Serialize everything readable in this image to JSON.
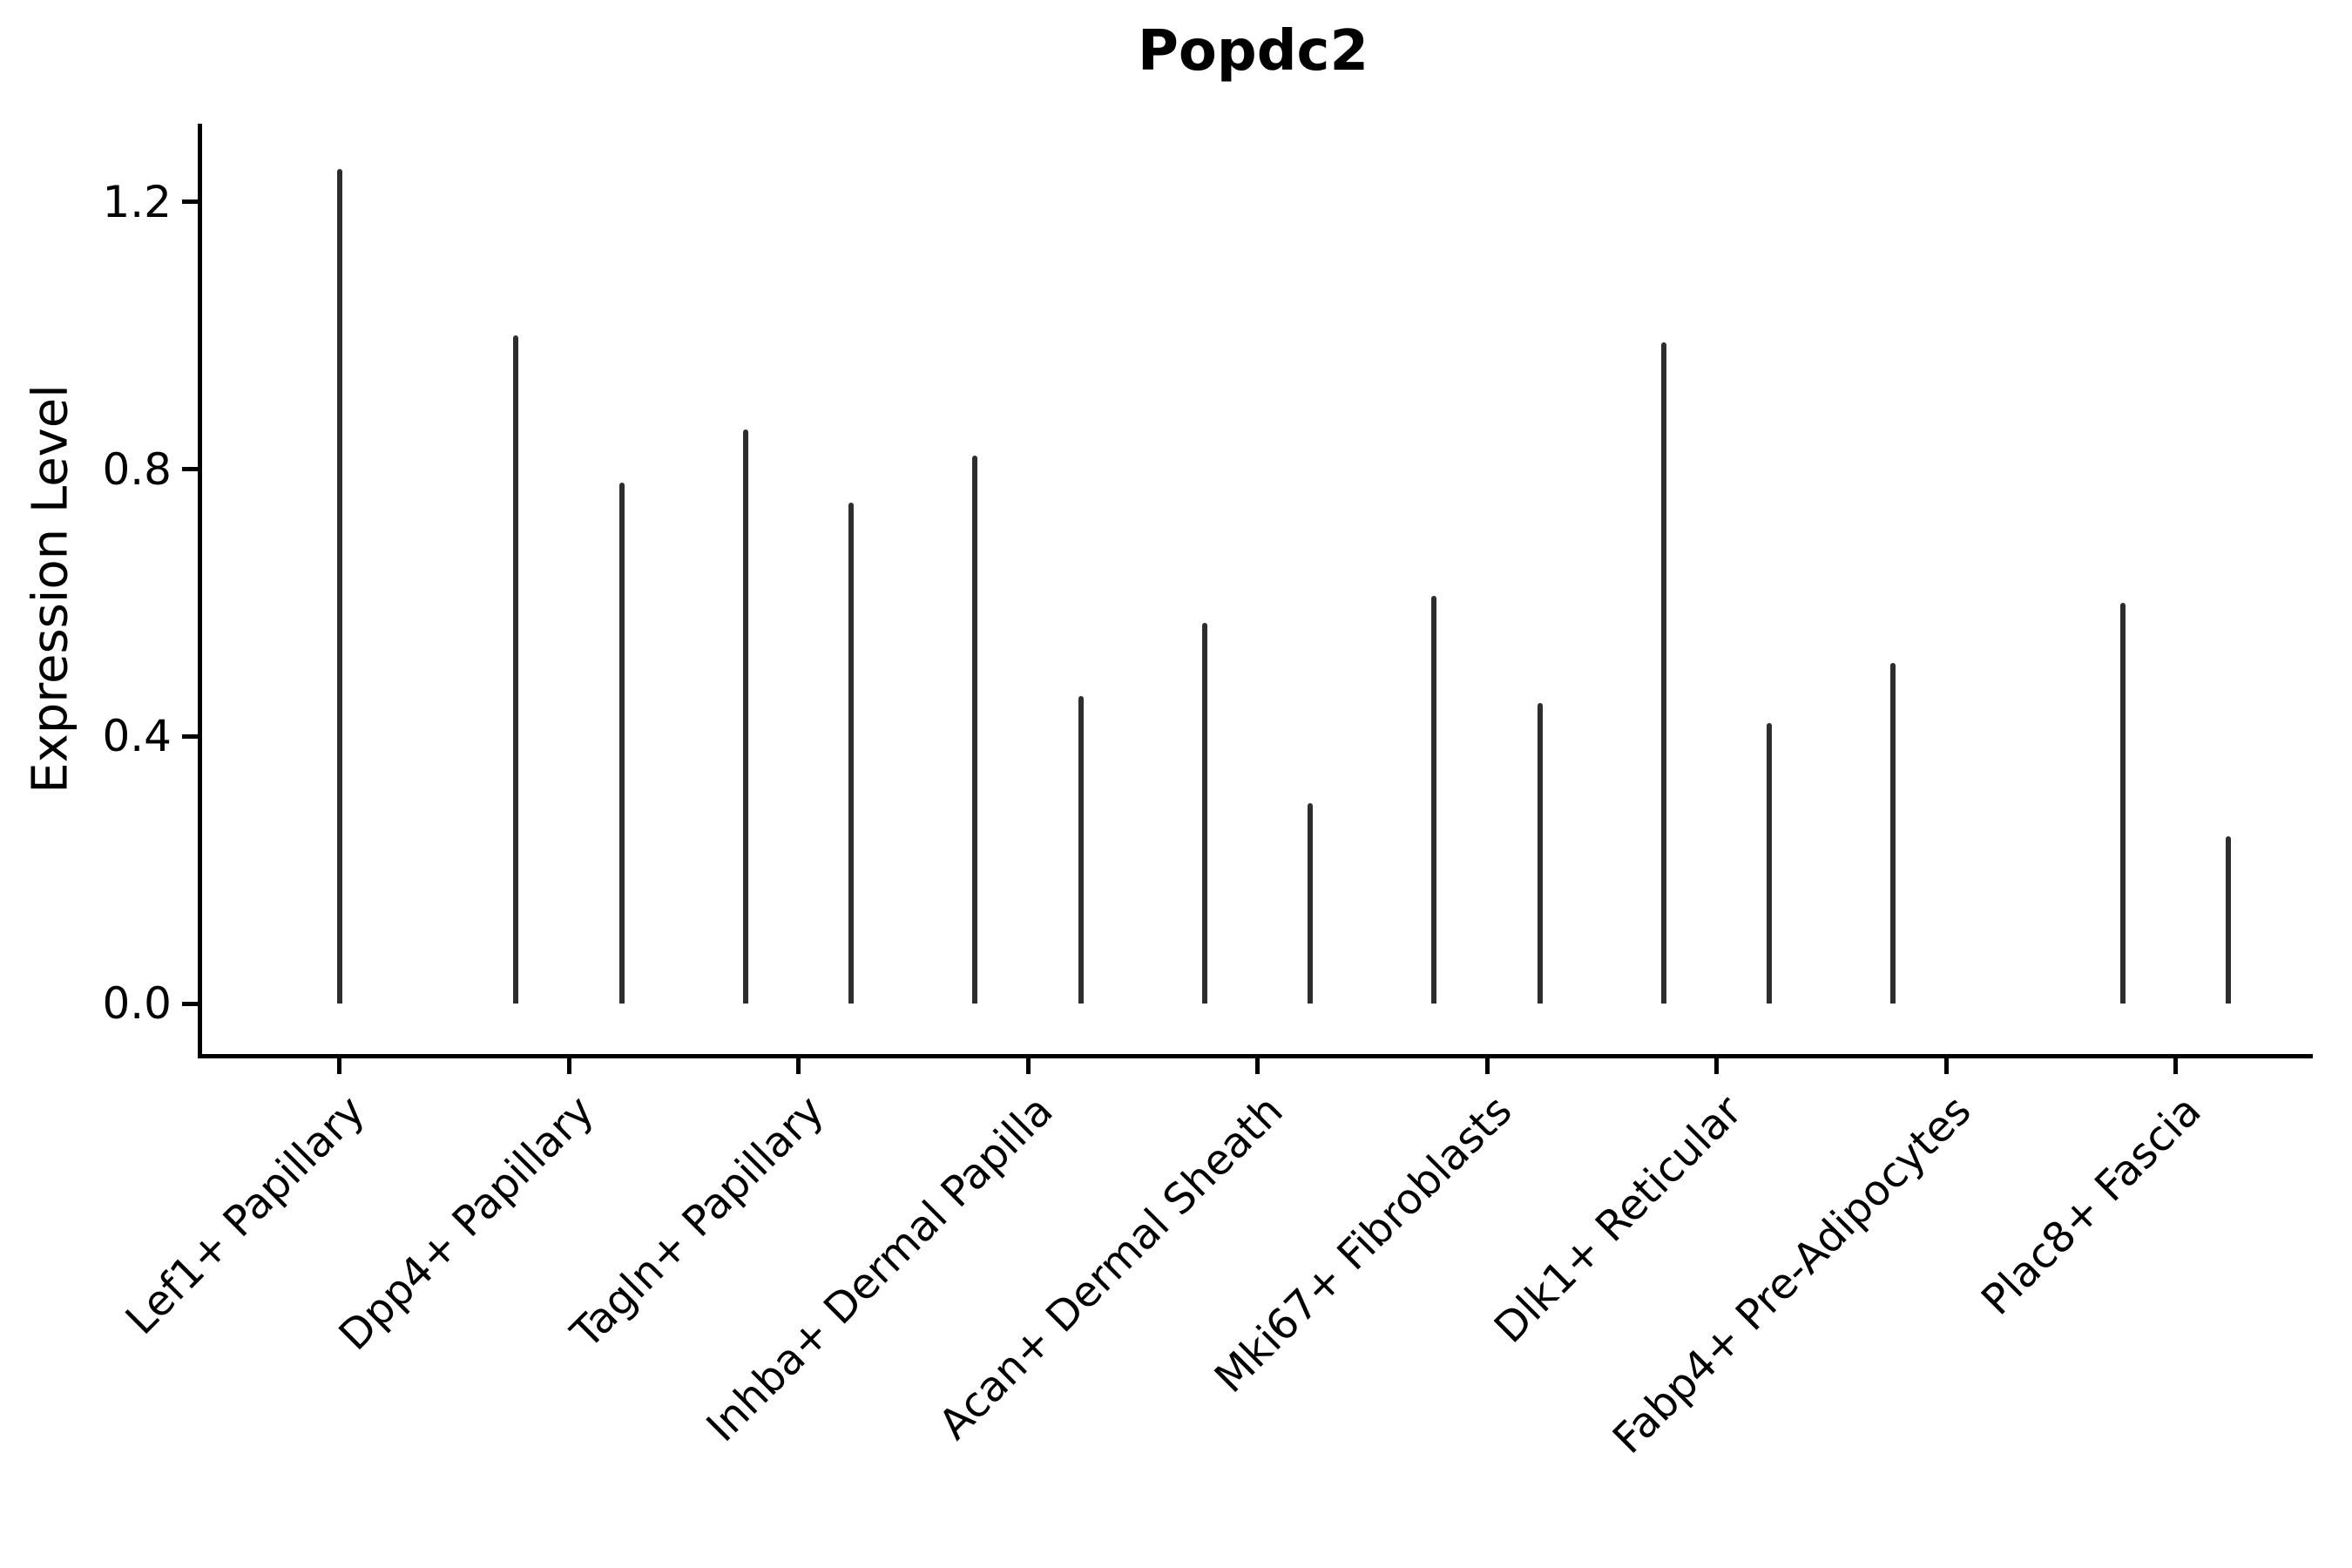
{
  "chart_data": {
    "type": "violin",
    "title": "Popdc2",
    "ylabel": "Expression Level",
    "xlabel": "",
    "grid": false,
    "legend": "none",
    "ylim": [
      -0.08,
      1.32
    ],
    "yticks": [
      {
        "value": 0.0,
        "label": "0.0"
      },
      {
        "value": 0.4,
        "label": "0.4"
      },
      {
        "value": 0.8,
        "label": "0.8"
      },
      {
        "value": 1.2,
        "label": "1.2"
      }
    ],
    "colors": {
      "spike": "#2e2e2e",
      "base": "#3a3a3a",
      "axis": "#000000",
      "text": "#000000",
      "background": "#ffffff"
    },
    "description": "Violin plot of Popdc2 expression; each category shows flat zero-density base with thin max-expression spikes",
    "categories": [
      {
        "label": "Lef1+ Papillary",
        "violins": [
          {
            "position": "center",
            "max": 1.25
          }
        ]
      },
      {
        "label": "Dpp4+ Papillary",
        "violins": [
          {
            "position": "left",
            "max": 1.0
          },
          {
            "position": "right",
            "max": 0.78
          }
        ]
      },
      {
        "label": "Tagln+ Papillary",
        "violins": [
          {
            "position": "left",
            "max": 0.86
          },
          {
            "position": "right",
            "max": 0.75
          }
        ]
      },
      {
        "label": "Inhba+ Dermal Papilla",
        "violins": [
          {
            "position": "left",
            "max": 0.82
          },
          {
            "position": "right",
            "max": 0.46
          }
        ]
      },
      {
        "label": "Acan+ Dermal Sheath",
        "violins": [
          {
            "position": "left",
            "max": 0.57
          },
          {
            "position": "right",
            "max": 0.3
          }
        ]
      },
      {
        "label": "Mki67+ Fibroblasts",
        "violins": [
          {
            "position": "left",
            "max": 0.61
          },
          {
            "position": "right",
            "max": 0.45
          }
        ]
      },
      {
        "label": "Dlk1+ Reticular",
        "violins": [
          {
            "position": "left",
            "max": 0.99
          },
          {
            "position": "right",
            "max": 0.42
          }
        ]
      },
      {
        "label": "Fabp4+ Pre-Adipocytes",
        "violins": [
          {
            "position": "left",
            "max": 0.51
          },
          {
            "position": "right",
            "max": 0.0
          }
        ]
      },
      {
        "label": "Plac8+ Fascia",
        "violins": [
          {
            "position": "left",
            "max": 0.6
          },
          {
            "position": "right",
            "max": 0.25
          }
        ]
      }
    ]
  }
}
